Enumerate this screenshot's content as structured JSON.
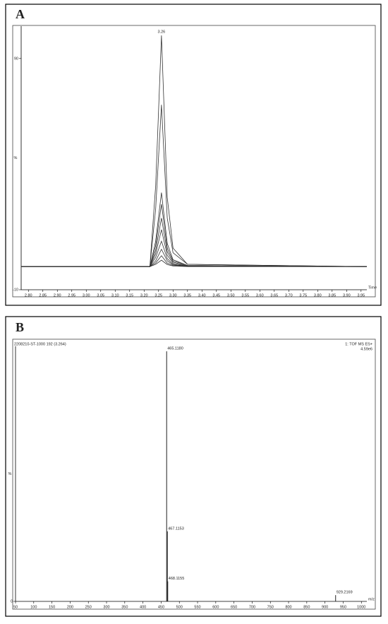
{
  "chart_data": [
    {
      "type": "line",
      "label": "A",
      "y_label": "%",
      "x_label": "Time",
      "annotation": {
        "text": "3.26",
        "x": 3.26,
        "y": 100
      },
      "x": [
        2.775,
        3.22,
        3.24,
        3.26,
        3.28,
        3.3,
        3.35,
        3.97
      ],
      "series": [
        {
          "color": "#333333",
          "values": [
            0,
            0,
            35,
            100,
            30,
            8,
            1,
            0
          ]
        },
        {
          "color": "#333333",
          "values": [
            0,
            0,
            25,
            70,
            21,
            6,
            1,
            0
          ]
        },
        {
          "color": "#333333",
          "values": [
            0,
            0,
            11,
            32,
            10,
            3,
            0.5,
            0
          ]
        },
        {
          "color": "#333333",
          "values": [
            0,
            0,
            9,
            27,
            8,
            2.5,
            0.5,
            0
          ]
        },
        {
          "color": "#333333",
          "values": [
            0,
            0,
            7,
            21,
            6.5,
            2,
            0.3,
            0
          ]
        },
        {
          "color": "#333333",
          "values": [
            0,
            0,
            5.5,
            16,
            5,
            1.5,
            0.2,
            0
          ]
        },
        {
          "color": "#333333",
          "values": [
            0,
            0,
            4,
            11,
            3.5,
            1,
            0.2,
            0
          ]
        },
        {
          "color": "#333333",
          "values": [
            0,
            0,
            2.5,
            7.5,
            2.5,
            0.8,
            0.1,
            0
          ]
        },
        {
          "color": "#333333",
          "values": [
            0,
            0,
            1.6,
            4.7,
            1.5,
            0.5,
            0.1,
            0
          ]
        },
        {
          "color": "#333333",
          "values": [
            0,
            0,
            1,
            2.8,
            0.9,
            0.3,
            0,
            0
          ]
        }
      ],
      "xlim": [
        2.775,
        3.97
      ],
      "ylim": [
        -10,
        104
      ],
      "xticks": [
        {
          "value": 2.8,
          "label": "2.80"
        },
        2.85,
        {
          "value": 2.9,
          "label": "2.90"
        },
        2.95,
        {
          "value": 3,
          "label": "3.00"
        },
        3.05,
        {
          "value": 3.1,
          "label": "3.10"
        },
        3.15,
        {
          "value": 3.2,
          "label": "3.20"
        },
        3.25,
        {
          "value": 3.3,
          "label": "3.30"
        },
        3.35,
        {
          "value": 3.4,
          "label": "3.40"
        },
        3.45,
        {
          "value": 3.5,
          "label": "3.50"
        },
        3.55,
        {
          "value": 3.6,
          "label": "3.60"
        },
        3.65,
        {
          "value": 3.7,
          "label": "3.70"
        },
        3.75,
        {
          "value": 3.8,
          "label": "3.80"
        },
        3.85,
        {
          "value": 3.9,
          "label": "3.90"
        },
        3.95
      ],
      "yticks": [
        -10,
        90
      ]
    },
    {
      "type": "stem",
      "label": "B",
      "y_label": "%",
      "x_label": "m/z",
      "title": "2208210-ST-1000 192 (3.264)",
      "info": [
        "1: TOF MS ES+",
        "4.59e6"
      ],
      "info_color": "#8b1a1a",
      "x": [
        465.118,
        467.1153,
        468.1155,
        929.2169
      ],
      "x_labels": [
        "465.1180",
        "467.1153",
        "468.1155",
        "929.2169"
      ],
      "values": [
        100,
        28,
        8,
        2.5
      ],
      "color": "#222222",
      "xlim": [
        50,
        1015
      ],
      "ylim": [
        0,
        102
      ],
      "xticks": [
        50,
        100,
        150,
        200,
        250,
        300,
        350,
        400,
        450,
        500,
        550,
        600,
        650,
        700,
        750,
        800,
        850,
        900,
        950,
        1000
      ],
      "yticks": [
        0
      ]
    }
  ]
}
